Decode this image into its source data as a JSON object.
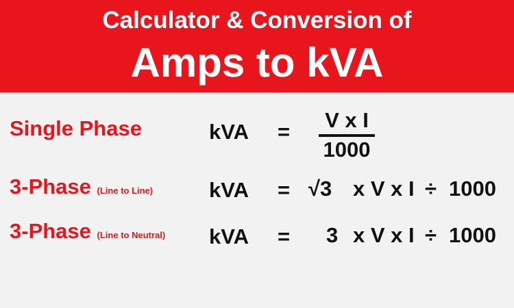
{
  "header": {
    "line1": "Calculator & Conversion of",
    "line2": "Amps to kVA"
  },
  "rows": [
    {
      "label": "Single Phase",
      "lhs": "kVA",
      "equals": "=",
      "numerator": "V x I",
      "denominator": "1000"
    },
    {
      "label": "3-Phase",
      "qualifier": "(Line to Line)",
      "lhs": "kVA",
      "equals": "=",
      "factor": "√3",
      "product": "x V x I",
      "divide": "÷",
      "divisor": "1000"
    },
    {
      "label": "3-Phase",
      "qualifier": "(Line to Neutral)",
      "lhs": "kVA",
      "equals": "=",
      "factor": "3",
      "product": "x V x I",
      "divide": "÷",
      "divisor": "1000"
    }
  ]
}
